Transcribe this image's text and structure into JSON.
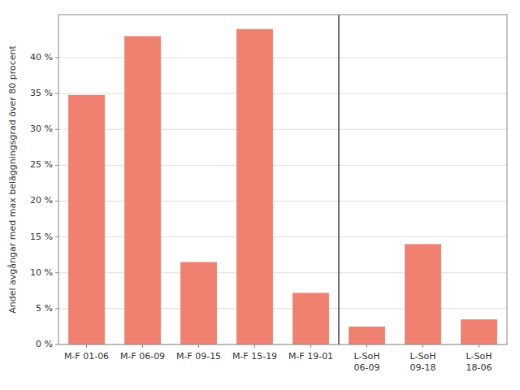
{
  "chart_data": {
    "type": "bar",
    "categories": [
      "M-F 01-06",
      "M-F 06-09",
      "M-F 09-15",
      "M-F 15-19",
      "M-F 19-01",
      "L-SoH\n06-09",
      "L-SoH\n09-18",
      "L-SoH\n18-06"
    ],
    "values": [
      34.8,
      43.0,
      11.5,
      44.0,
      7.2,
      2.5,
      14.0,
      3.5
    ],
    "color": "#F08070",
    "ylabel": "Andel avgångar med max beläggningsgrad över 80 procent",
    "ylim": [
      0,
      46
    ],
    "yticks": [
      {
        "value": 0,
        "label": "0 %"
      },
      {
        "value": 5,
        "label": "5 %"
      },
      {
        "value": 10,
        "label": "10 %"
      },
      {
        "value": 15,
        "label": "15 %"
      },
      {
        "value": 20,
        "label": "20 %"
      },
      {
        "value": 25,
        "label": "25 %"
      },
      {
        "value": 30,
        "label": "30 %"
      },
      {
        "value": 35,
        "label": "35 %"
      },
      {
        "value": 40,
        "label": "40 %"
      }
    ],
    "grid": true
  }
}
